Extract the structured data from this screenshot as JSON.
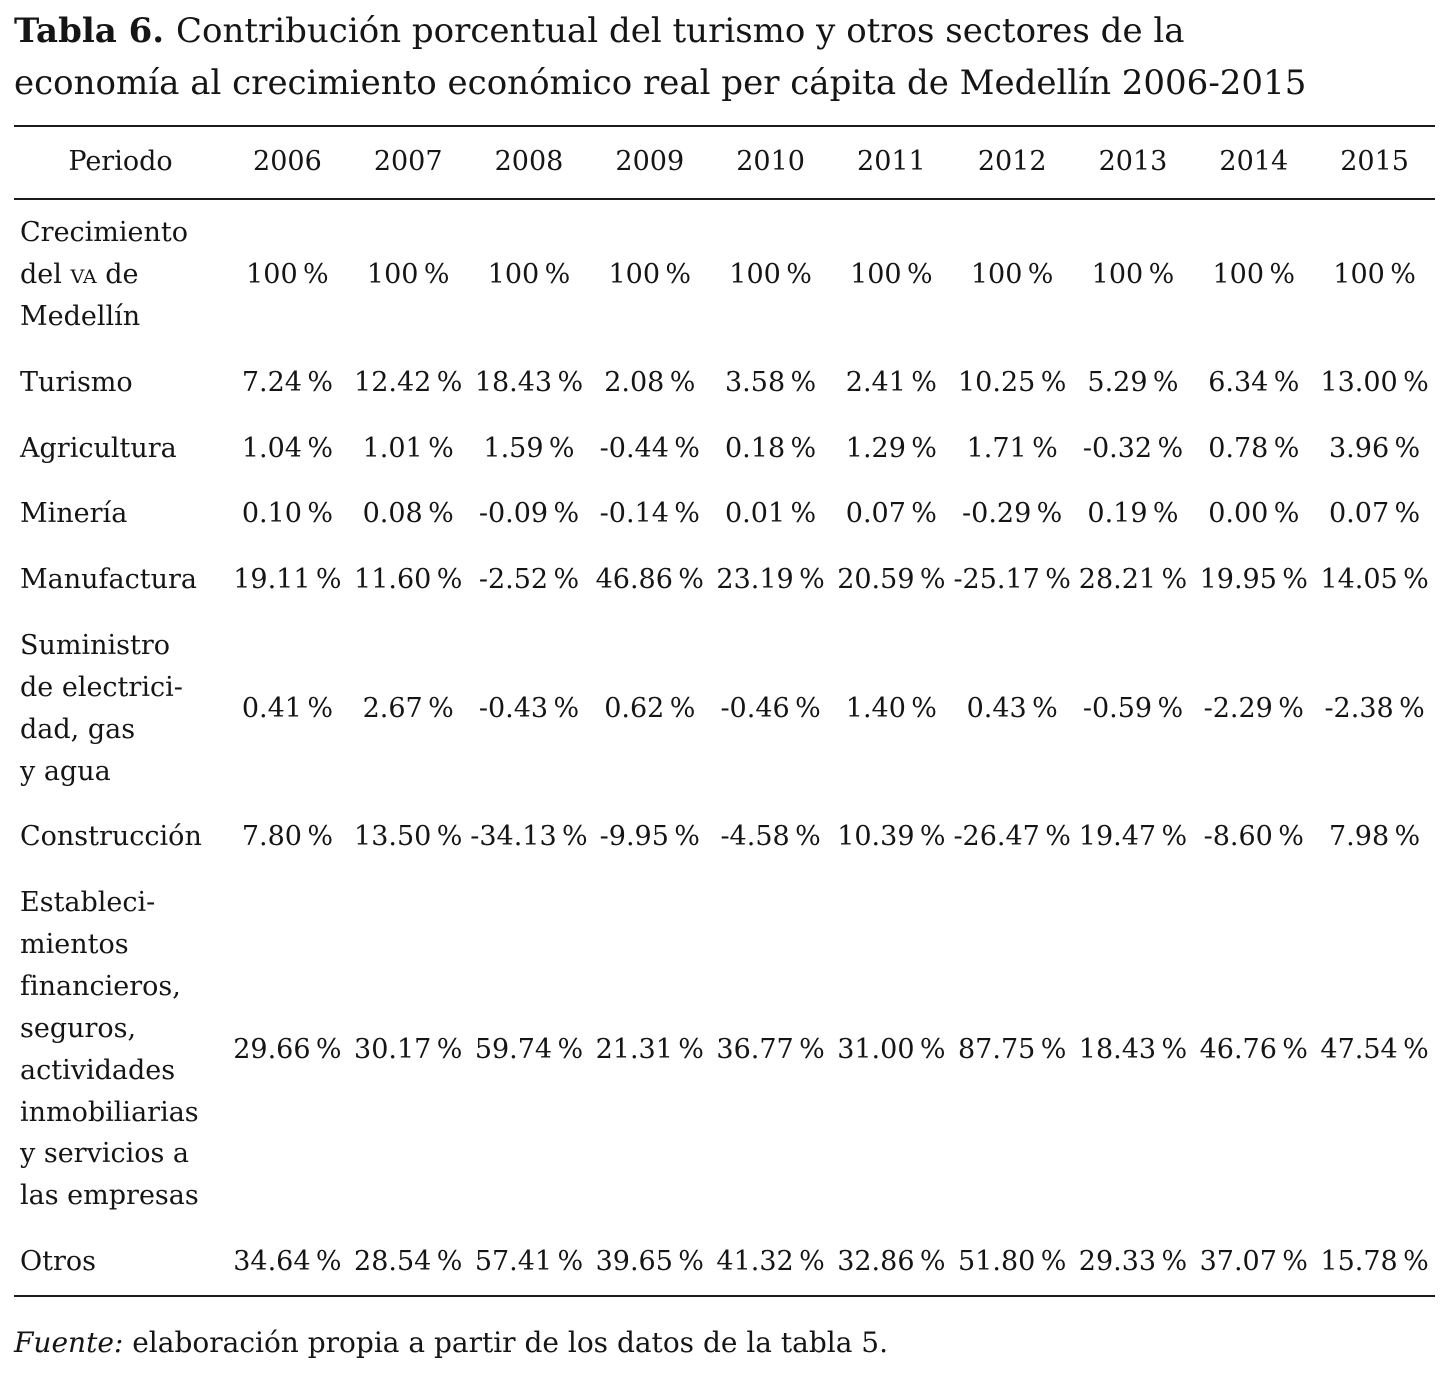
{
  "page": {
    "title_label": "Tabla 6. ",
    "title_text": "Contribución porcentual del turismo y otros sectores de la\neconomía al crecimiento económico real per cápita de Medellín 2006-2015",
    "source_label": "Fuente: ",
    "source_text": "elaboración propia a partir de los datos de la tabla 5."
  },
  "chart_data": {
    "type": "table",
    "unit": "%",
    "columns": [
      "Periodo",
      "2006",
      "2007",
      "2008",
      "2009",
      "2010",
      "2011",
      "2012",
      "2013",
      "2014",
      "2015"
    ],
    "rows": [
      {
        "label": "Crecimiento\ndel [sc]va[/sc] de\nMedellín",
        "values": [
          "100 %",
          "100 %",
          "100 %",
          "100 %",
          "100 %",
          "100 %",
          "100 %",
          "100 %",
          "100 %",
          "100 %"
        ]
      },
      {
        "label": "Turismo",
        "values": [
          "7.24 %",
          "12.42 %",
          "18.43 %",
          "2.08 %",
          "3.58 %",
          "2.41 %",
          "10.25 %",
          "5.29 %",
          "6.34 %",
          "13.00 %"
        ]
      },
      {
        "label": "Agricultura",
        "values": [
          "1.04 %",
          "1.01 %",
          "1.59 %",
          "-0.44 %",
          "0.18 %",
          "1.29 %",
          "1.71 %",
          "-0.32 %",
          "0.78 %",
          "3.96 %"
        ]
      },
      {
        "label": "Minería",
        "values": [
          "0.10 %",
          "0.08 %",
          "-0.09 %",
          "-0.14 %",
          "0.01 %",
          "0.07 %",
          "-0.29 %",
          "0.19 %",
          "0.00 %",
          "0.07 %"
        ]
      },
      {
        "label": "Manufactura",
        "values": [
          "19.11 %",
          "11.60 %",
          "-2.52 %",
          "46.86 %",
          "23.19 %",
          "20.59 %",
          "-25.17 %",
          "28.21 %",
          "19.95 %",
          "14.05 %"
        ]
      },
      {
        "label": "Suministro\nde electrici-\ndad, gas\ny agua",
        "values": [
          "0.41 %",
          "2.67 %",
          "-0.43 %",
          "0.62 %",
          "-0.46 %",
          "1.40 %",
          "0.43 %",
          "-0.59 %",
          "-2.29 %",
          "-2.38 %"
        ]
      },
      {
        "label": "Construcción",
        "values": [
          "7.80 %",
          "13.50 %",
          "-34.13 %",
          "-9.95 %",
          "-4.58 %",
          "10.39 %",
          "-26.47 %",
          "19.47 %",
          "-8.60 %",
          "7.98 %"
        ]
      },
      {
        "label": "Estableci-\nmientos\nfinancieros,\nseguros,\nactividades\ninmobiliarias\ny servicios a\nlas empresas",
        "values": [
          "29.66 %",
          "30.17 %",
          "59.74 %",
          "21.31 %",
          "36.77 %",
          "31.00 %",
          "87.75 %",
          "18.43 %",
          "46.76 %",
          "47.54 %"
        ]
      },
      {
        "label": "Otros",
        "values": [
          "34.64 %",
          "28.54 %",
          "57.41 %",
          "39.65 %",
          "41.32 %",
          "32.86 %",
          "51.80 %",
          "29.33 %",
          "37.07 %",
          "15.78 %"
        ]
      }
    ]
  }
}
